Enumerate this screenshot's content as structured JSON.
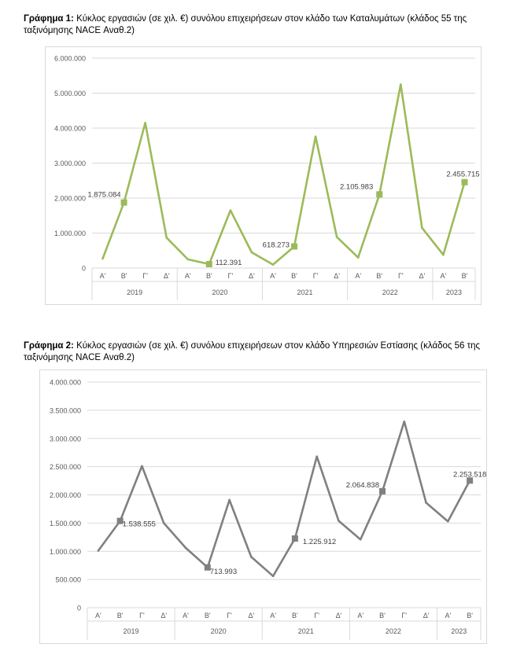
{
  "charts": [
    {
      "caption_label": "Γράφημα 1:",
      "caption_text": " Κύκλος εργασιών (σε χιλ. €) συνόλου επιχειρήσεων στον κλάδο των Καταλυμάτων (κλάδος 55 της ταξινόμησης NACE Αναθ.2)",
      "color": "#9bbb59"
    },
    {
      "caption_label": "Γράφημα 2:",
      "caption_text": " Κύκλος εργασιών (σε χιλ. €) συνόλου επιχειρήσεων στον κλάδο Υπηρεσιών Εστίασης (κλάδος 56 της ταξινόμησης NACE Αναθ.2)",
      "color": "#808080"
    }
  ],
  "chart_data": [
    {
      "type": "line",
      "quarters": [
        "Α'",
        "Β'",
        "Γ'",
        "Δ'",
        "Α'",
        "Β'",
        "Γ'",
        "Δ'",
        "Α'",
        "Β'",
        "Γ'",
        "Δ'",
        "Α'",
        "Β'",
        "Γ'",
        "Δ'",
        "Α'",
        "Β'"
      ],
      "years": [
        "2019",
        "2020",
        "2021",
        "2022",
        "2023"
      ],
      "values": [
        270000,
        1875084,
        4150000,
        870000,
        250000,
        112391,
        1650000,
        450000,
        100000,
        618273,
        3760000,
        890000,
        300000,
        2105983,
        5250000,
        1150000,
        380000,
        2455715
      ],
      "labeled_points": [
        {
          "index": 1,
          "label": "1.875.084"
        },
        {
          "index": 5,
          "label": "112.391"
        },
        {
          "index": 9,
          "label": "618.273"
        },
        {
          "index": 13,
          "label": "2.105.983"
        },
        {
          "index": 17,
          "label": "2.455.715"
        }
      ],
      "ylim": [
        0,
        6000000
      ],
      "yticks": [
        "0",
        "1.000.000",
        "2.000.000",
        "3.000.000",
        "4.000.000",
        "5.000.000",
        "6.000.000"
      ],
      "grid": true
    },
    {
      "type": "line",
      "quarters": [
        "Α'",
        "Β'",
        "Γ'",
        "Δ'",
        "Α'",
        "Β'",
        "Γ'",
        "Δ'",
        "Α'",
        "Β'",
        "Γ'",
        "Δ'",
        "Α'",
        "Β'",
        "Γ'",
        "Δ'",
        "Α'",
        "Β'"
      ],
      "years": [
        "2019",
        "2020",
        "2021",
        "2022",
        "2023"
      ],
      "values": [
        1010000,
        1538555,
        2510000,
        1500000,
        1060000,
        713993,
        1910000,
        900000,
        560000,
        1225912,
        2680000,
        1540000,
        1210000,
        2064838,
        3300000,
        1860000,
        1530000,
        2253518
      ],
      "labeled_points": [
        {
          "index": 1,
          "label": "1.538.555"
        },
        {
          "index": 5,
          "label": "713.993"
        },
        {
          "index": 9,
          "label": "1.225.912"
        },
        {
          "index": 13,
          "label": "2.064.838"
        },
        {
          "index": 17,
          "label": "2.253.518"
        }
      ],
      "ylim": [
        0,
        4000000
      ],
      "yticks": [
        "0",
        "500.000",
        "1.000.000",
        "1.500.000",
        "2.000.000",
        "2.500.000",
        "3.000.000",
        "3.500.000",
        "4.000.000"
      ],
      "grid": true
    }
  ]
}
